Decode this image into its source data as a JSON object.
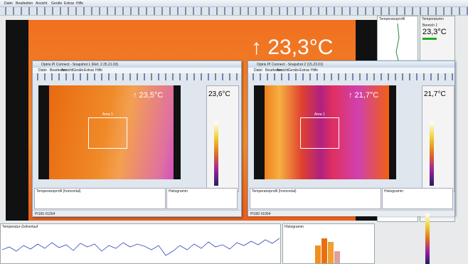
{
  "menu": [
    "Datei",
    "Bearbeiten",
    "Ansicht",
    "Geräte",
    "Extras",
    "Hilfe"
  ],
  "main": {
    "readout": "↑ 23,3°C",
    "panel_title": "Temperaturprofil",
    "panel2_title": "Temperaturen",
    "area_label": "Bereich 1",
    "area_value": "23,3°C"
  },
  "windows": [
    {
      "title": "Optris PI Connect - Snapshot 1 (Ref. 2 25.21.03)",
      "menu": [
        "Datei",
        "Bearbeiten",
        "Ansicht",
        "Geräte",
        "Extras",
        "Hilfe"
      ],
      "readout": "↑ 23,5°C",
      "side_value": "23,6°C",
      "area_label": "Area 1",
      "bottom_left": "Temperaturprofil (horizontal)",
      "bottom_right": "Histogramm",
      "status": "PI160 #1004"
    },
    {
      "title": "Optris PI Connect - Snapshot 2 (15.23.01)",
      "menu": [
        "Datei",
        "Bearbeiten",
        "Ansicht",
        "Geräte",
        "Extras",
        "Hilfe"
      ],
      "readout": "↑ 21,7°C",
      "side_value": "21,7°C",
      "area_label": "Area 1",
      "bottom_left": "Temperaturprofil (horizontal)",
      "bottom_right": "Histogramm",
      "status": "PI160 #1004"
    }
  ],
  "bottom": {
    "timeline_title": "Temperatur-Zeitverlauf",
    "histogram_title": "Histogramm"
  }
}
